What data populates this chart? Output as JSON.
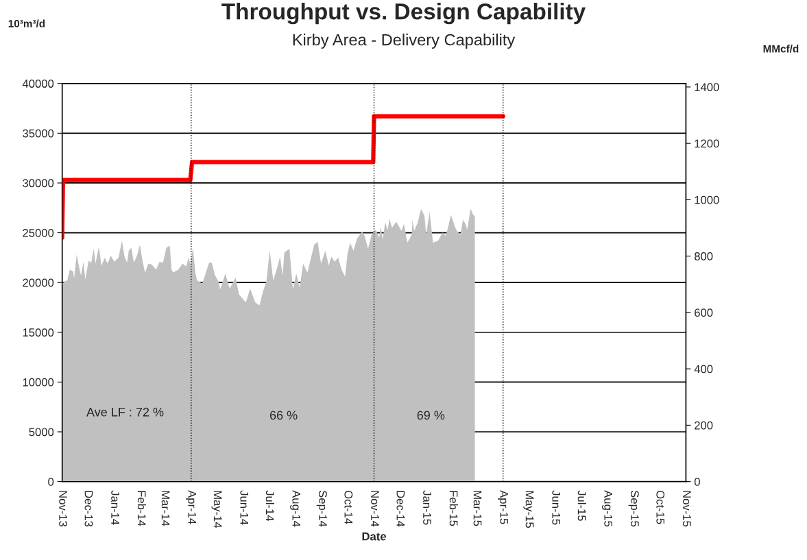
{
  "chart_data": {
    "type": "area",
    "title": "Throughput vs. Design Capability",
    "subtitle": "Kirby Area - Delivery Capability",
    "xlabel": "Date",
    "ylabel": "10³m³/d",
    "y2label": "MMcf/d",
    "series": [
      {
        "color": "#c0c0c0",
        "x": [
          "2013-11-01",
          "2013-11-03",
          "2013-11-07",
          "2013-11-10",
          "2013-11-14",
          "2013-11-15",
          "2013-11-18",
          "2013-11-20",
          "2013-11-23",
          "2013-11-26",
          "2013-11-28",
          "2013-12-02",
          "2013-12-05",
          "2013-12-08",
          "2013-12-10",
          "2013-12-14",
          "2013-12-17",
          "2013-12-21",
          "2013-12-24",
          "2013-12-28",
          "2014-01-01",
          "2014-01-06",
          "2014-01-10",
          "2014-01-13",
          "2014-01-16",
          "2014-01-18",
          "2014-01-21",
          "2014-01-24",
          "2014-01-28",
          "2014-01-31",
          "2014-02-03",
          "2014-02-06",
          "2014-02-10",
          "2014-02-14",
          "2014-02-19",
          "2014-02-23",
          "2014-02-27",
          "2014-03-03",
          "2014-03-07",
          "2014-03-09",
          "2014-03-11",
          "2014-03-17",
          "2014-03-22",
          "2014-03-26",
          "2014-03-29",
          "2014-03-31",
          "2014-04-03",
          "2014-04-06",
          "2014-04-08",
          "2014-04-14",
          "2014-04-22",
          "2014-04-25",
          "2014-04-29",
          "2014-05-03",
          "2014-05-05",
          "2014-05-11",
          "2014-05-16",
          "2014-05-23",
          "2014-05-27",
          "2014-06-04",
          "2014-06-09",
          "2014-06-15",
          "2014-06-20",
          "2014-06-24",
          "2014-06-28",
          "2014-07-02",
          "2014-07-06",
          "2014-07-11",
          "2014-07-14",
          "2014-07-17",
          "2014-07-19",
          "2014-07-25",
          "2014-07-29",
          "2014-08-02",
          "2014-08-06",
          "2014-08-10",
          "2014-08-15",
          "2014-08-23",
          "2014-08-27",
          "2014-08-31",
          "2014-09-05",
          "2014-09-09",
          "2014-09-12",
          "2014-09-16",
          "2014-09-20",
          "2014-09-24",
          "2014-09-28",
          "2014-10-01",
          "2014-10-04",
          "2014-10-08",
          "2014-10-12",
          "2014-10-18",
          "2014-10-21",
          "2014-10-25",
          "2014-10-29",
          "2014-11-03",
          "2014-11-07",
          "2014-11-09",
          "2014-11-11",
          "2014-11-14",
          "2014-11-17",
          "2014-11-19",
          "2014-11-22",
          "2014-11-27",
          "2014-12-03",
          "2014-12-06",
          "2014-12-10",
          "2014-12-15",
          "2014-12-16",
          "2014-12-18",
          "2014-12-22",
          "2014-12-26",
          "2014-12-30",
          "2015-01-01",
          "2015-01-05",
          "2015-01-09",
          "2015-01-15",
          "2015-01-20",
          "2015-01-24",
          "2015-01-27",
          "2015-01-30",
          "2015-02-04",
          "2015-02-06",
          "2015-02-10",
          "2015-02-13",
          "2015-02-16",
          "2015-02-18",
          "2015-02-22",
          "2015-02-25",
          "2015-02-27"
        ],
        "values": [
          19500,
          20100,
          20200,
          21300,
          21100,
          20400,
          22800,
          21900,
          20700,
          22100,
          20300,
          22200,
          22000,
          23400,
          21900,
          23600,
          21700,
          22500,
          21900,
          22700,
          22100,
          22500,
          24200,
          22600,
          22000,
          23200,
          23500,
          22000,
          22800,
          23800,
          22200,
          21000,
          21900,
          21800,
          21300,
          22100,
          22000,
          23500,
          23700,
          21300,
          21000,
          21300,
          21900,
          21600,
          22500,
          21800,
          23500,
          20900,
          20200,
          19900,
          22000,
          22000,
          20700,
          20100,
          19300,
          20900,
          19400,
          20500,
          18800,
          18000,
          19400,
          18000,
          17700,
          19100,
          20100,
          23200,
          20200,
          21600,
          22600,
          20700,
          23000,
          23400,
          19300,
          20900,
          19500,
          21900,
          21000,
          23800,
          24100,
          21900,
          23200,
          21700,
          22600,
          22100,
          22500,
          21300,
          20600,
          22900,
          24000,
          23200,
          24400,
          25100,
          24700,
          23400,
          24800,
          25300,
          24500,
          25600,
          24300,
          26000,
          25300,
          26400,
          25500,
          26100,
          25200,
          25900,
          24000,
          24800,
          26300,
          25200,
          26000,
          27400,
          26700,
          24800,
          27100,
          24000,
          24200,
          25000,
          24700,
          25700,
          26800,
          25500,
          25200,
          24800,
          26300,
          25900,
          25300,
          27400,
          26800,
          26700
        ]
      },
      {
        "type": "line",
        "color": "#ff0000",
        "x": [
          "2013-11-01",
          "2013-11-02",
          "2014-03-31",
          "2014-04-02",
          "2014-10-31",
          "2014-11-01",
          "2015-04-01"
        ],
        "values": [
          24500,
          30300,
          30300,
          32100,
          32100,
          36700,
          36700
        ]
      }
    ],
    "xlim": [
      "2013-11-01",
      "2015-11-01"
    ],
    "xticks": [
      {
        "value": "2013-11-01",
        "label": "Nov-13"
      },
      {
        "value": "2013-12-01",
        "label": "Dec-13"
      },
      {
        "value": "2014-01-01",
        "label": "Jan-14"
      },
      {
        "value": "2014-02-01",
        "label": "Feb-14"
      },
      {
        "value": "2014-03-01",
        "label": "Mar-14"
      },
      {
        "value": "2014-04-01",
        "label": "Apr-14"
      },
      {
        "value": "2014-05-01",
        "label": "May-14"
      },
      {
        "value": "2014-06-01",
        "label": "Jun-14"
      },
      {
        "value": "2014-07-01",
        "label": "Jul-14"
      },
      {
        "value": "2014-08-01",
        "label": "Aug-14"
      },
      {
        "value": "2014-09-01",
        "label": "Sep-14"
      },
      {
        "value": "2014-10-01",
        "label": "Oct-14"
      },
      {
        "value": "2014-11-01",
        "label": "Nov-14"
      },
      {
        "value": "2014-12-01",
        "label": "Dec-14"
      },
      {
        "value": "2015-01-01",
        "label": "Jan-15"
      },
      {
        "value": "2015-02-01",
        "label": "Feb-15"
      },
      {
        "value": "2015-03-01",
        "label": "Mar-15"
      },
      {
        "value": "2015-04-01",
        "label": "Apr-15"
      },
      {
        "value": "2015-05-01",
        "label": "May-15"
      },
      {
        "value": "2015-06-01",
        "label": "Jun-15"
      },
      {
        "value": "2015-07-01",
        "label": "Jul-15"
      },
      {
        "value": "2015-08-01",
        "label": "Aug-15"
      },
      {
        "value": "2015-09-01",
        "label": "Sep-15"
      },
      {
        "value": "2015-10-01",
        "label": "Oct-15"
      },
      {
        "value": "2015-11-01",
        "label": "Nov-15"
      }
    ],
    "ylim": [
      0,
      40000
    ],
    "yticks": [
      0,
      5000,
      10000,
      15000,
      20000,
      25000,
      30000,
      35000,
      40000
    ],
    "y2lim": [
      0,
      1412.6
    ],
    "y2ticks": [
      0,
      200,
      400,
      600,
      800,
      1000,
      1200,
      1400
    ],
    "ref_lines": [
      {
        "axis": "x",
        "value": "2014-04-01",
        "color": "#000000",
        "line_style": "dotted"
      },
      {
        "axis": "x",
        "value": "2014-11-01",
        "color": "#000000",
        "line_style": "dotted"
      },
      {
        "axis": "x",
        "value": "2015-04-01",
        "color": "#000000",
        "line_style": "dotted"
      }
    ],
    "annotations": [
      "Ave LF : 72 %",
      "66 %",
      "69 %"
    ],
    "grid": "y",
    "legend": false
  }
}
